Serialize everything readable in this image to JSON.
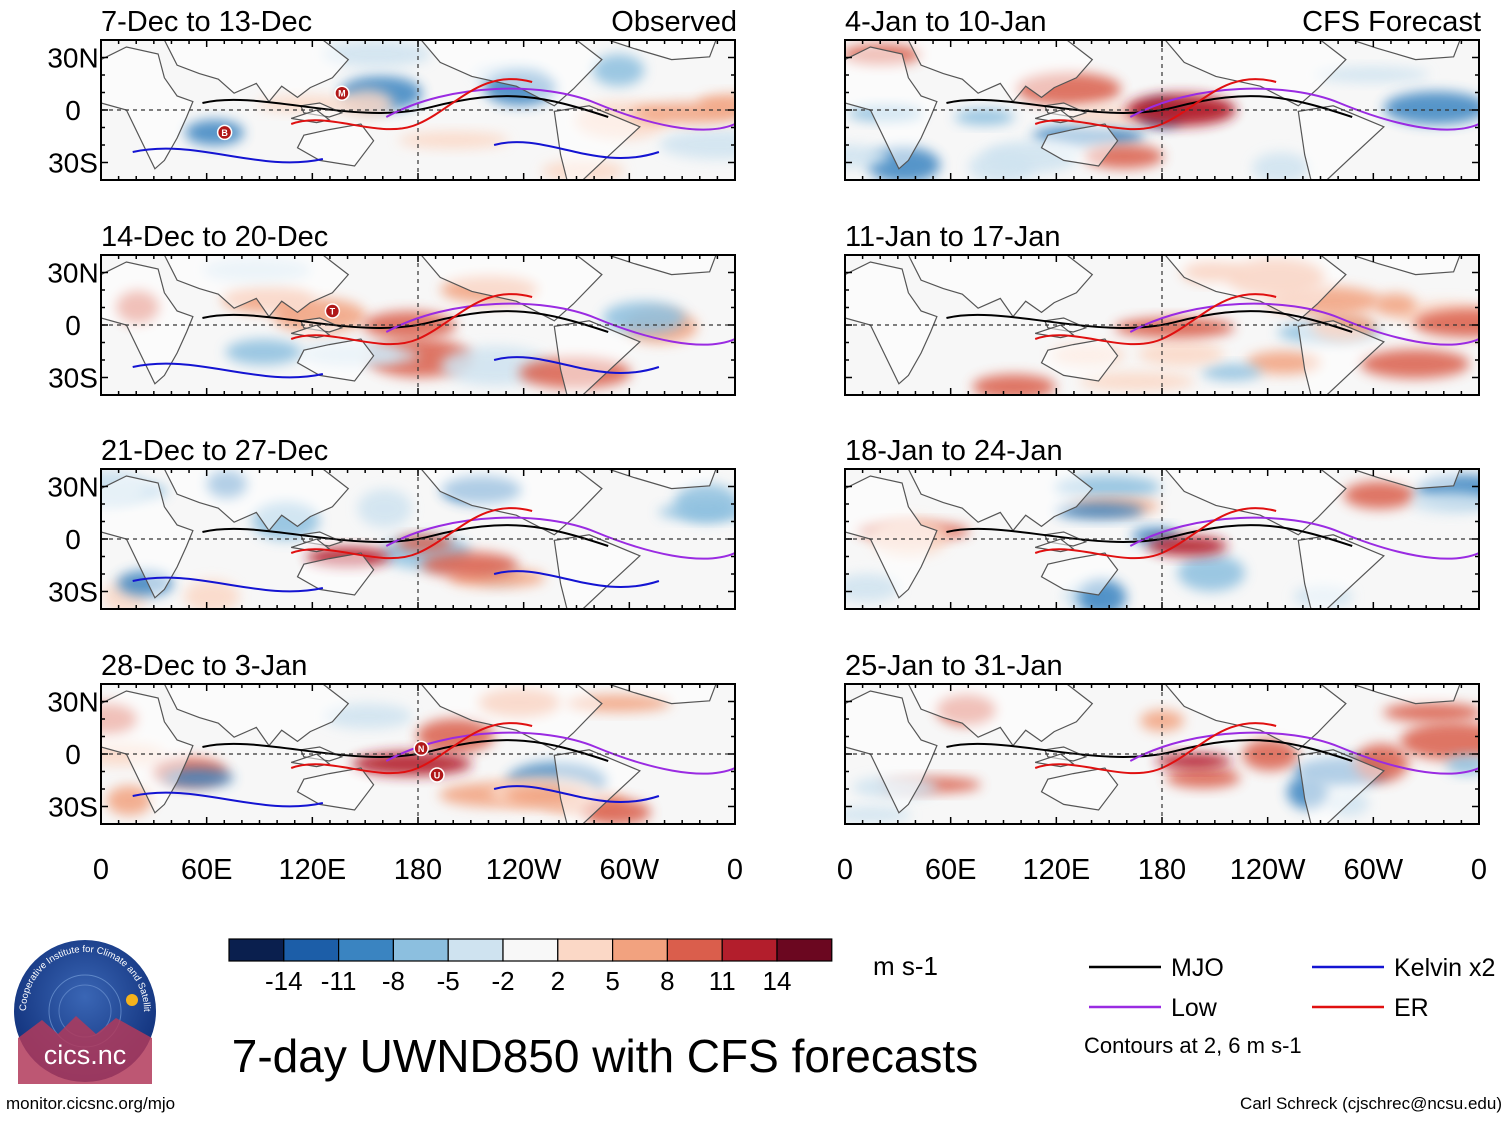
{
  "title": "7-day UWND850 with CFS forecasts",
  "colors": {
    "mjo": "#000000",
    "kelvin": "#1414d2",
    "low": "#9a2be2",
    "er": "#e01010",
    "land": "#ffffff",
    "coast": "#555555"
  },
  "chart_data": {
    "type": "heatmap",
    "variable": "850-hPa zonal wind anomaly",
    "units": "m s-1",
    "x_ticks": [
      "0",
      "60E",
      "120E",
      "180",
      "120W",
      "60W",
      "0"
    ],
    "y_ticks": [
      "30N",
      "0",
      "30S"
    ],
    "colorbar": {
      "levels": [
        "-14",
        "-11",
        "-8",
        "-5",
        "-2",
        "2",
        "5",
        "8",
        "11",
        "14"
      ],
      "colors": [
        "#0a1f4e",
        "#1c5ea8",
        "#3a84c1",
        "#8cbfdf",
        "#cfe3f0",
        "#f8f8f8",
        "#fbd8c6",
        "#f2a27f",
        "#da5e4c",
        "#b31e2c",
        "#6b0720"
      ]
    },
    "panels": [
      {
        "label": "7-Dec to 13-Dec",
        "tag": "Observed",
        "column": "observed"
      },
      {
        "label": "14-Dec to 20-Dec",
        "tag": "",
        "column": "observed"
      },
      {
        "label": "21-Dec to 27-Dec",
        "tag": "",
        "column": "observed"
      },
      {
        "label": "28-Dec to 3-Jan",
        "tag": "",
        "column": "observed"
      },
      {
        "label": "4-Jan to 10-Jan",
        "tag": "CFS Forecast",
        "column": "forecast"
      },
      {
        "label": "11-Jan to 17-Jan",
        "tag": "",
        "column": "forecast"
      },
      {
        "label": "18-Jan to 24-Jan",
        "tag": "",
        "column": "forecast"
      },
      {
        "label": "25-Jan to 31-Jan",
        "tag": "",
        "column": "forecast"
      }
    ],
    "legend": [
      {
        "label": "MJO",
        "color": "#000000"
      },
      {
        "label": "Kelvin x2",
        "color": "#1414d2"
      },
      {
        "label": "Low",
        "color": "#9a2be2"
      },
      {
        "label": "ER",
        "color": "#e01010"
      }
    ],
    "contour_note": "Contours at 2, 6 m s-1",
    "storm_markers": [
      {
        "panel": 0,
        "letter": "M"
      },
      {
        "panel": 0,
        "letter": "B"
      },
      {
        "panel": 1,
        "letter": "T"
      },
      {
        "panel": 3,
        "letter": "N"
      },
      {
        "panel": 3,
        "letter": "U"
      }
    ]
  },
  "logo": {
    "arc_text": "Cooperative Institute for Climate and Satellites",
    "name": "cics.nc"
  },
  "footer": {
    "left": "monitor.cicsnc.org/mjo",
    "right": "Carl Schreck (cjschrec@ncsu.edu)"
  }
}
